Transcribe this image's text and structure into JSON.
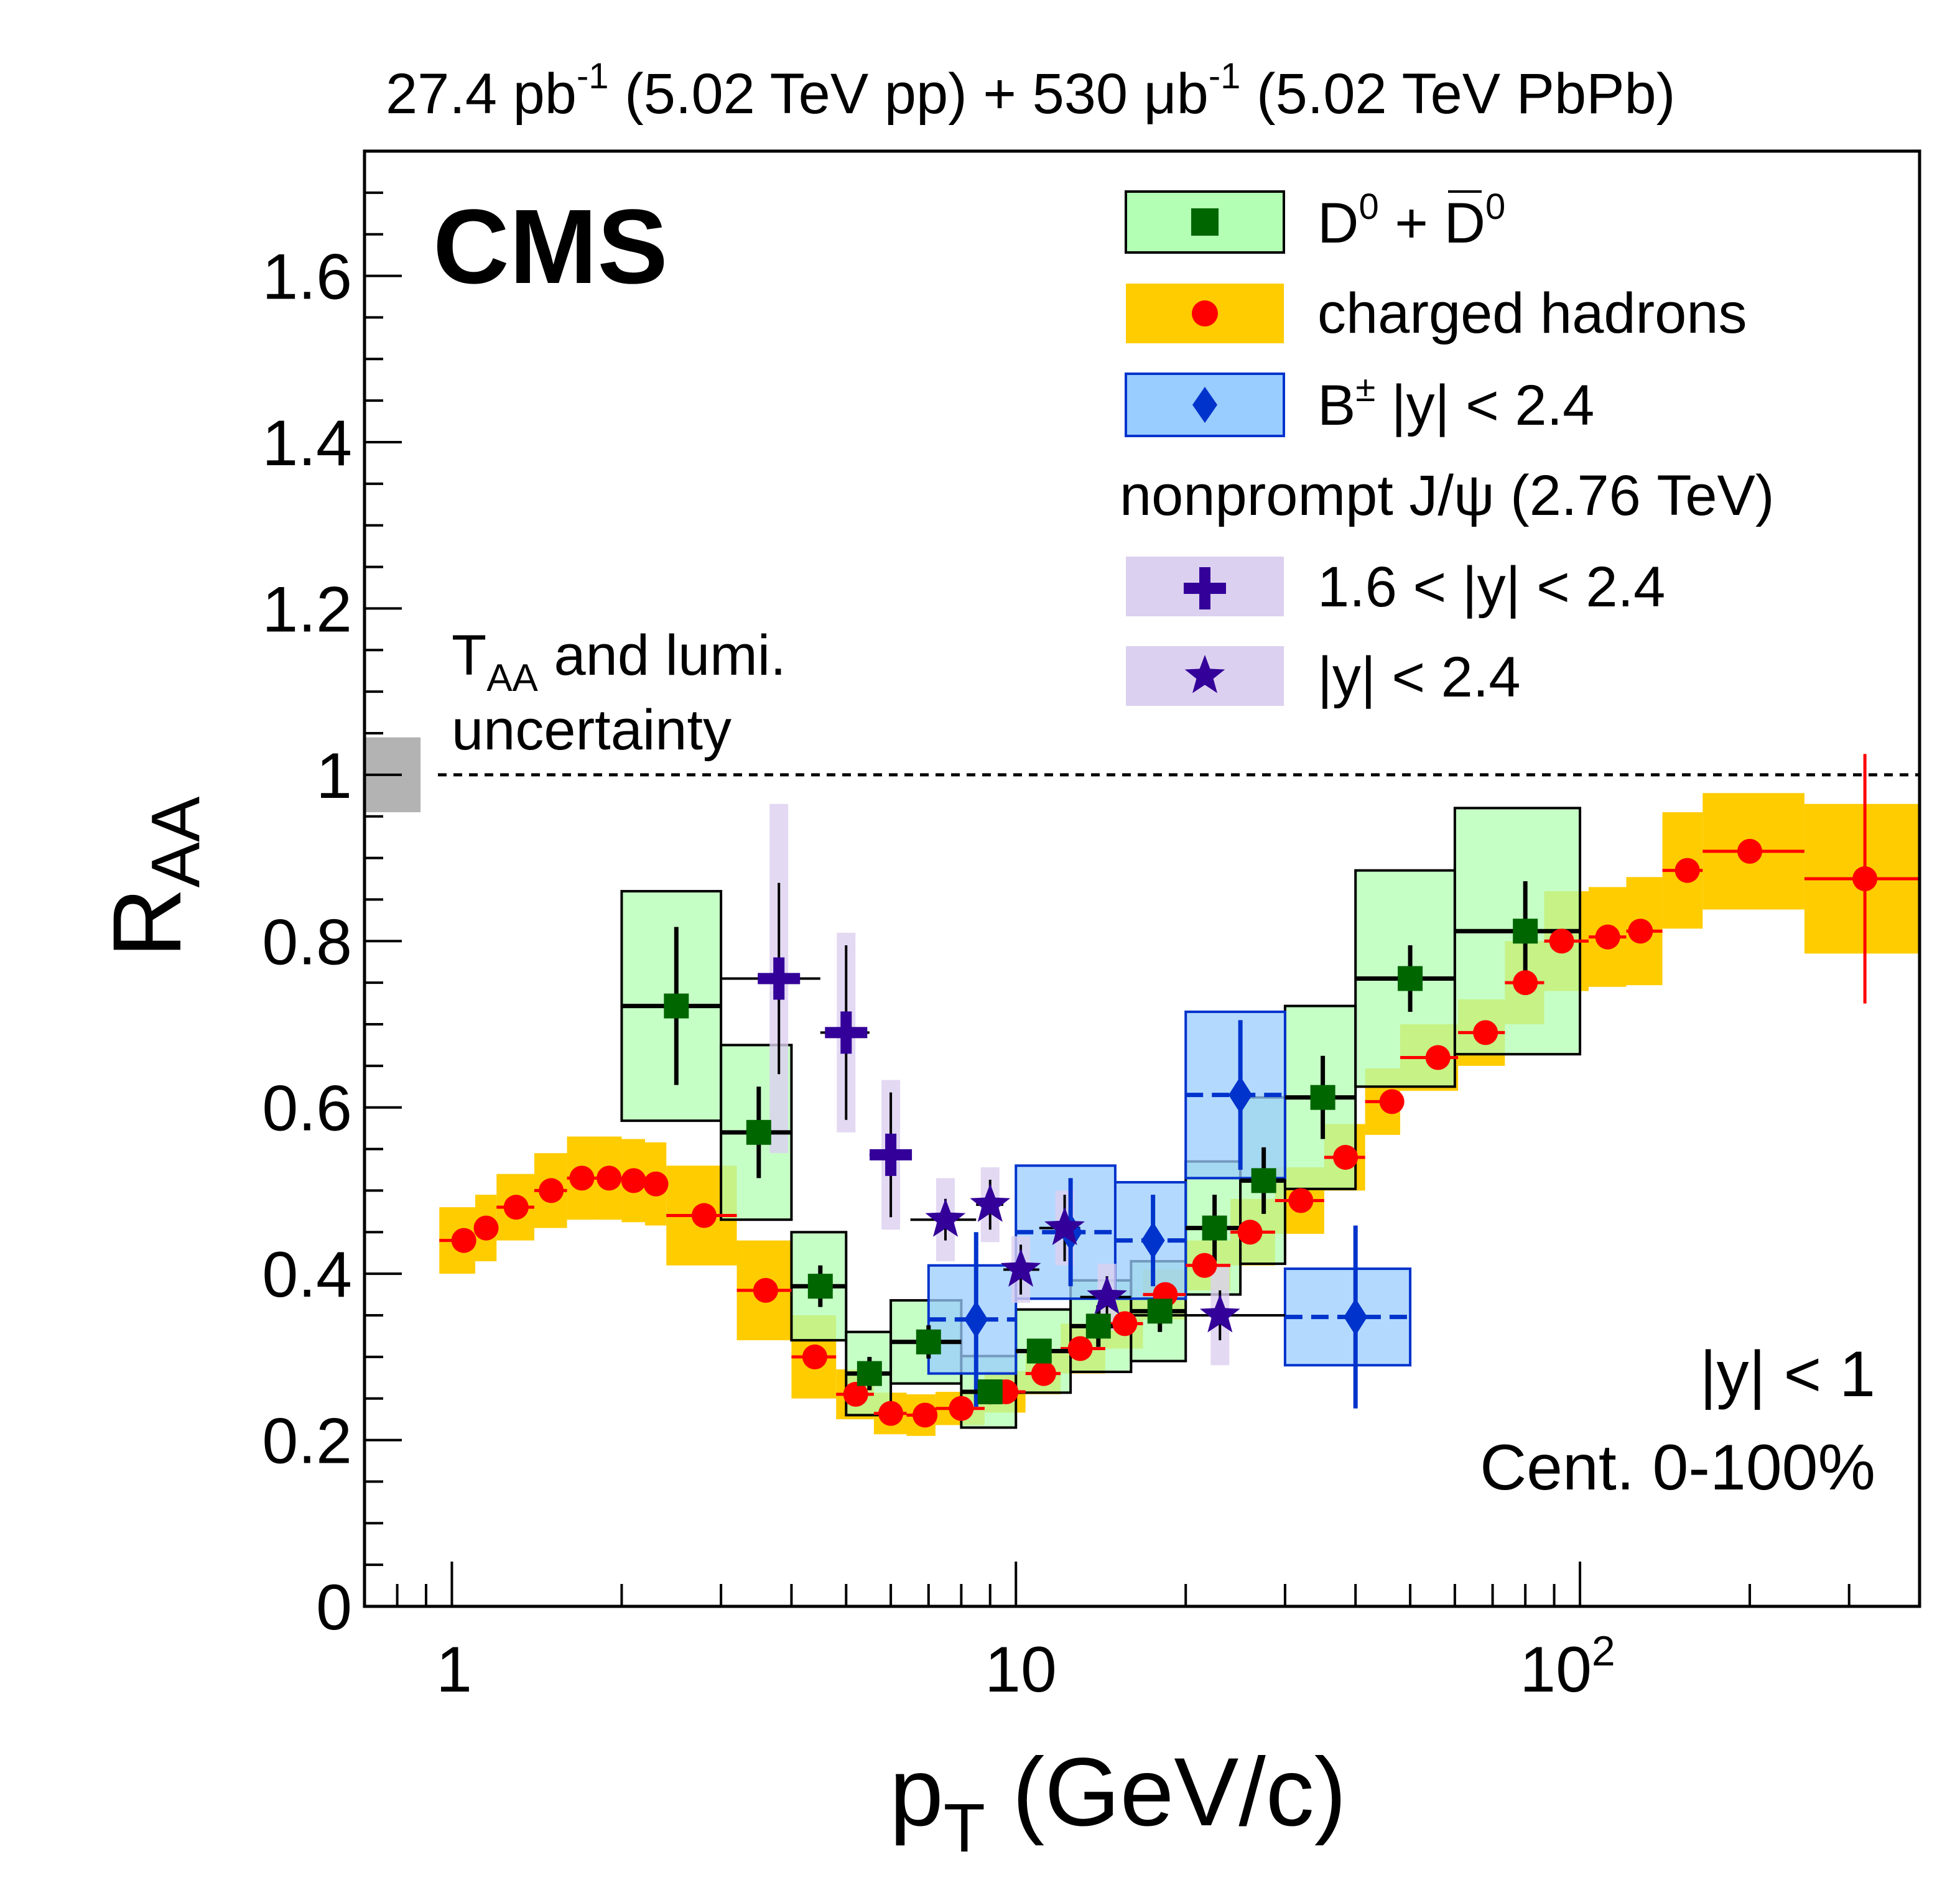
{
  "header": {
    "lumi_pp_value": "27.4 pb",
    "lumi_pp_exp": "-1",
    "lumi_pp_label": " (5.02 TeV pp) + 530 ",
    "lumi_pbpb_unit": "μb",
    "lumi_pbpb_exp": "-1",
    "lumi_pbpb_label": " (5.02 TeV PbPb)"
  },
  "cms_label": "CMS",
  "annotations": {
    "taa_main": "T",
    "taa_sub": "AA",
    "taa_rest": " and lumi.",
    "taa_line2": "uncertainty",
    "rapidity": "|y| < 1",
    "centrality": "Cent. 0-100%"
  },
  "legend": {
    "d0_a": "D",
    "d0_a_sup": "0",
    "d0_plus": " + ",
    "d0_b": "D",
    "d0_b_sup": "0",
    "charged": "charged hadrons",
    "bpm_main": "B",
    "bpm_sup": "±",
    "bpm_rest": " |y| < 2.4",
    "jpsi_header": "nonprompt J/ψ (2.76 TeV)",
    "jpsi_fwd": "1.6 < |y| < 2.4",
    "jpsi_mid": "|y| < 2.4"
  },
  "axes": {
    "y_label_main": "R",
    "y_label_sub": "AA",
    "x_label_main": "p",
    "x_label_sub": "T",
    "x_label_rest": " (GeV/c)",
    "y_ticks": [
      "0",
      "0.2",
      "0.4",
      "0.6",
      "0.8",
      "1",
      "1.2",
      "1.4",
      "1.6"
    ],
    "x_tick_1": "1",
    "x_tick_10": "10",
    "x_tick_100_base": "10",
    "x_tick_100_exp": "2"
  },
  "colors": {
    "d0_box_fill": "#b3ffb3",
    "d0_marker": "#006600",
    "charged_band": "#ffcc00",
    "charged_marker": "#ff0000",
    "b_box_fill": "#99ccff",
    "b_marker": "#0033cc",
    "jpsi_box_fill": "#dcd0f0",
    "jpsi_marker": "#330099",
    "lumi_box": "#b3b3b3"
  },
  "chart_data": {
    "type": "scatter",
    "title": "27.4 pb-1 (5.02 TeV pp) + 530 μb-1 (5.02 TeV PbPb)",
    "xlabel": "pT (GeV/c)",
    "ylabel": "RAA",
    "xscale": "log",
    "xlim": [
      0.7,
      400
    ],
    "ylim": [
      0,
      1.75
    ],
    "reference_line": 1.0,
    "global_uncertainty_box": {
      "x": [
        0.7,
        0.88
      ],
      "y": [
        0.955,
        1.045
      ]
    },
    "series": [
      {
        "name": "charged hadrons",
        "marker": "circle",
        "points": [
          {
            "x": 1.05,
            "y": 0.44,
            "xl": 0.95,
            "xh": 1.1,
            "sys": 0.04
          },
          {
            "x": 1.15,
            "y": 0.455,
            "xl": 1.1,
            "xh": 1.2,
            "sys": 0.04
          },
          {
            "x": 1.3,
            "y": 0.48,
            "xl": 1.2,
            "xh": 1.4,
            "sys": 0.04
          },
          {
            "x": 1.5,
            "y": 0.5,
            "xl": 1.4,
            "xh": 1.6,
            "sys": 0.045
          },
          {
            "x": 1.7,
            "y": 0.515,
            "xl": 1.6,
            "xh": 1.8,
            "sys": 0.05
          },
          {
            "x": 1.9,
            "y": 0.515,
            "xl": 1.8,
            "xh": 2.0,
            "sys": 0.05
          },
          {
            "x": 2.1,
            "y": 0.512,
            "xl": 2.0,
            "xh": 2.2,
            "sys": 0.05
          },
          {
            "x": 2.3,
            "y": 0.508,
            "xl": 2.2,
            "xh": 2.4,
            "sys": 0.05
          },
          {
            "x": 2.8,
            "y": 0.47,
            "xl": 2.4,
            "xh": 3.2,
            "sys": 0.06
          },
          {
            "x": 3.6,
            "y": 0.38,
            "xl": 3.2,
            "xh": 4.0,
            "sys": 0.06
          },
          {
            "x": 4.4,
            "y": 0.3,
            "xl": 4.0,
            "xh": 4.8,
            "sys": 0.05
          },
          {
            "x": 5.2,
            "y": 0.255,
            "xl": 4.8,
            "xh": 5.6,
            "sys": 0.03
          },
          {
            "x": 6.0,
            "y": 0.232,
            "xl": 5.6,
            "xh": 6.4,
            "sys": 0.025
          },
          {
            "x": 6.9,
            "y": 0.23,
            "xl": 6.4,
            "xh": 7.2,
            "sys": 0.025
          },
          {
            "x": 8.0,
            "y": 0.238,
            "xl": 7.2,
            "xh": 8.8,
            "sys": 0.02
          },
          {
            "x": 9.6,
            "y": 0.258,
            "xl": 8.8,
            "xh": 10.4,
            "sys": 0.025
          },
          {
            "x": 11.2,
            "y": 0.28,
            "xl": 10.4,
            "xh": 12.0,
            "sys": 0.025
          },
          {
            "x": 13.0,
            "y": 0.31,
            "xl": 12.0,
            "xh": 14.4,
            "sys": 0.03
          },
          {
            "x": 15.6,
            "y": 0.34,
            "xl": 14.4,
            "xh": 16.8,
            "sys": 0.03
          },
          {
            "x": 18.4,
            "y": 0.375,
            "xl": 16.8,
            "xh": 20.0,
            "sys": 0.03
          },
          {
            "x": 21.6,
            "y": 0.41,
            "xl": 20.0,
            "xh": 24.0,
            "sys": 0.03
          },
          {
            "x": 26.0,
            "y": 0.45,
            "xl": 24.0,
            "xh": 28.8,
            "sys": 0.04
          },
          {
            "x": 32.0,
            "y": 0.488,
            "xl": 28.8,
            "xh": 35.2,
            "sys": 0.04
          },
          {
            "x": 38.4,
            "y": 0.54,
            "xl": 35.2,
            "xh": 41.6,
            "sys": 0.04
          },
          {
            "x": 46.4,
            "y": 0.607,
            "xl": 41.6,
            "xh": 48.0,
            "sys": 0.04
          },
          {
            "x": 56.0,
            "y": 0.66,
            "xl": 48.0,
            "xh": 60.8,
            "sys": 0.04
          },
          {
            "x": 68.0,
            "y": 0.69,
            "xl": 60.8,
            "xh": 73.6,
            "sys": 0.04
          },
          {
            "x": 80.0,
            "y": 0.75,
            "xl": 73.6,
            "xh": 86.4,
            "sys": 0.05
          },
          {
            "x": 92.8,
            "y": 0.8,
            "xl": 86.4,
            "xh": 103.6,
            "sys": 0.06
          },
          {
            "x": 112.0,
            "y": 0.805,
            "xl": 103.6,
            "xh": 120.8,
            "sys": 0.06
          },
          {
            "x": 128.0,
            "y": 0.812,
            "xl": 120.8,
            "xh": 140.0,
            "sys": 0.065
          },
          {
            "x": 155.0,
            "y": 0.885,
            "xl": 140.0,
            "xh": 165.0,
            "sys": 0.07
          },
          {
            "x": 200.0,
            "y": 0.908,
            "xl": 165.0,
            "xh": 250.0,
            "sys": 0.07
          },
          {
            "x": 320.0,
            "y": 0.875,
            "xl": 250.0,
            "xh": 400.0,
            "sys": 0.09,
            "stat": 0.15
          }
        ]
      },
      {
        "name": "D0 + D0bar",
        "marker": "square",
        "points": [
          {
            "x": 2.5,
            "y": 0.722,
            "xl": 2.0,
            "xh": 3.0,
            "sys": 0.138,
            "stat": 0.095
          },
          {
            "x": 3.5,
            "y": 0.57,
            "xl": 3.0,
            "xh": 4.0,
            "sys": 0.105,
            "stat": 0.055
          },
          {
            "x": 4.5,
            "y": 0.385,
            "xl": 4.0,
            "xh": 5.0,
            "sys": 0.065,
            "stat": 0.025
          },
          {
            "x": 5.5,
            "y": 0.28,
            "xl": 5.0,
            "xh": 6.0,
            "sys": 0.05,
            "stat": 0.02
          },
          {
            "x": 7.0,
            "y": 0.318,
            "xl": 6.0,
            "xh": 8.0,
            "sys": 0.05,
            "stat": 0.02
          },
          {
            "x": 9.0,
            "y": 0.258,
            "xl": 8.0,
            "xh": 10.0,
            "sys": 0.043,
            "stat": 0.015
          },
          {
            "x": 11.0,
            "y": 0.307,
            "xl": 10.0,
            "xh": 12.5,
            "sys": 0.05,
            "stat": 0.015
          },
          {
            "x": 14.0,
            "y": 0.337,
            "xl": 12.5,
            "xh": 16.0,
            "sys": 0.055,
            "stat": 0.025
          },
          {
            "x": 18.0,
            "y": 0.355,
            "xl": 16.0,
            "xh": 20.0,
            "sys": 0.06,
            "stat": 0.025
          },
          {
            "x": 22.5,
            "y": 0.455,
            "xl": 20.0,
            "xh": 25.0,
            "sys": 0.08,
            "stat": 0.04
          },
          {
            "x": 27.5,
            "y": 0.512,
            "xl": 25.0,
            "xh": 30.0,
            "sys": 0.1,
            "stat": 0.04
          },
          {
            "x": 35.0,
            "y": 0.612,
            "xl": 30.0,
            "xh": 40.0,
            "sys": 0.11,
            "stat": 0.05
          },
          {
            "x": 50.0,
            "y": 0.755,
            "xl": 40.0,
            "xh": 60.0,
            "sys": 0.13,
            "stat": 0.04
          },
          {
            "x": 80.0,
            "y": 0.812,
            "xl": 60.0,
            "xh": 100.0,
            "sys": 0.148,
            "stat": 0.06
          }
        ]
      },
      {
        "name": "B+- |y| < 2.4",
        "marker": "diamond",
        "points": [
          {
            "x": 8.5,
            "y": 0.345,
            "xl": 7.0,
            "xh": 10.0,
            "sys": 0.065,
            "stat": 0.105
          },
          {
            "x": 12.5,
            "y": 0.45,
            "xl": 10.0,
            "xh": 15.0,
            "sys": 0.08,
            "stat": 0.065
          },
          {
            "x": 17.5,
            "y": 0.44,
            "xl": 15.0,
            "xh": 20.0,
            "sys": 0.07,
            "stat": 0.055
          },
          {
            "x": 25.0,
            "y": 0.615,
            "xl": 20.0,
            "xh": 30.0,
            "sys": 0.1,
            "stat": 0.09
          },
          {
            "x": 40.0,
            "y": 0.348,
            "xl": 30.0,
            "xh": 50.0,
            "sys": 0.058,
            "stat": 0.11
          }
        ]
      },
      {
        "name": "nonprompt J/psi 1.6 < |y| < 2.4",
        "marker": "cross",
        "points": [
          {
            "x": 3.8,
            "y": 0.755,
            "xl": 3.0,
            "xh": 4.5,
            "sys": 0.21,
            "stat": 0.115
          },
          {
            "x": 5.0,
            "y": 0.69,
            "xl": 4.5,
            "xh": 5.5,
            "sys": 0.12,
            "stat": 0.105
          },
          {
            "x": 6.0,
            "y": 0.543,
            "xl": 5.5,
            "xh": 6.5,
            "sys": 0.09,
            "stat": 0.075
          }
        ]
      },
      {
        "name": "nonprompt J/psi |y| < 2.4",
        "marker": "star",
        "points": [
          {
            "x": 7.5,
            "y": 0.465,
            "xl": 6.5,
            "xh": 8.5,
            "sys": 0.05,
            "stat": 0.025
          },
          {
            "x": 9.0,
            "y": 0.483,
            "xl": 8.5,
            "xh": 9.5,
            "sys": 0.045,
            "stat": 0.03
          },
          {
            "x": 10.2,
            "y": 0.405,
            "xl": 9.5,
            "xh": 11.0,
            "sys": 0.04,
            "stat": 0.03
          },
          {
            "x": 12.2,
            "y": 0.455,
            "xl": 11.0,
            "xh": 13.0,
            "sys": 0.045,
            "stat": 0.04
          },
          {
            "x": 14.5,
            "y": 0.372,
            "xl": 13.0,
            "xh": 16.0,
            "sys": 0.04,
            "stat": 0.025
          },
          {
            "x": 23.0,
            "y": 0.35,
            "xl": 16.0,
            "xh": 30.0,
            "sys": 0.06,
            "stat": 0.03
          }
        ]
      }
    ]
  }
}
